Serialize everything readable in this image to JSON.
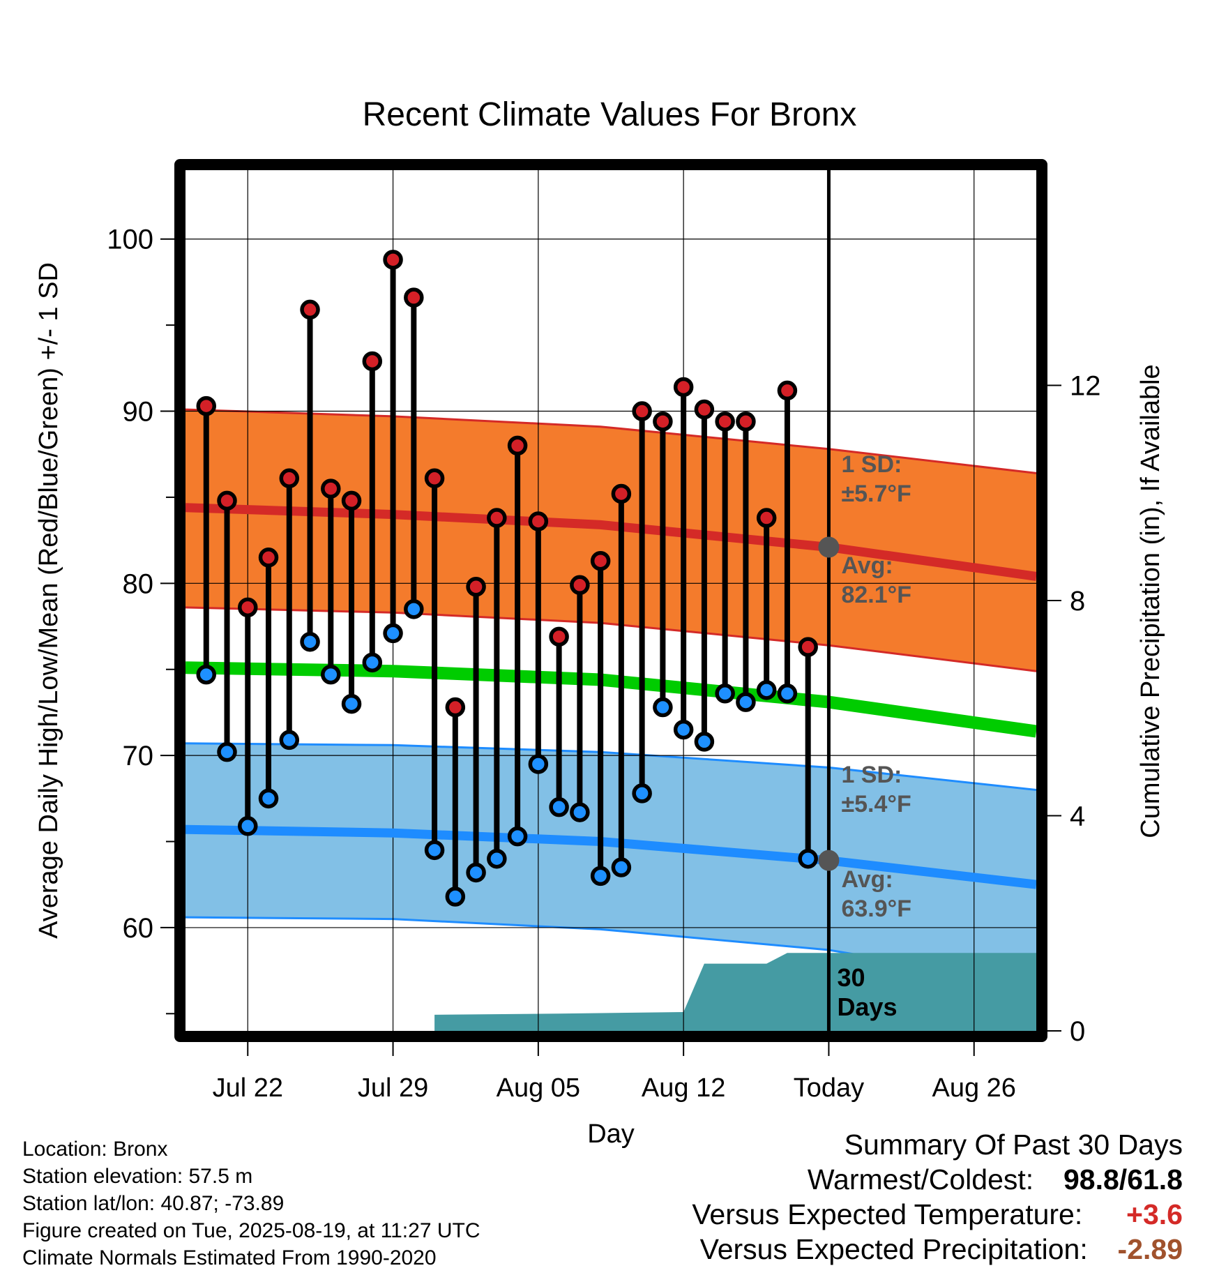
{
  "chart_data": {
    "type": "line",
    "title": "Recent Climate Values For Bronx",
    "xlabel": "Day",
    "ylabel": "Average Daily High/Low/Mean (Red/Blue/Green) +/- 1 SD",
    "y2label": "Cumulative Precipitation (in), If Available",
    "ylim": [
      54,
      104
    ],
    "y2lim": [
      0,
      16
    ],
    "xlim": [
      "2025-07-19",
      "2025-08-29"
    ],
    "y_ticks": [
      100,
      90,
      80,
      70,
      60
    ],
    "y2_ticks": [
      12,
      8,
      4,
      0
    ],
    "x_ticks": [
      {
        "date": "2025-07-22",
        "label": "Jul 22"
      },
      {
        "date": "2025-07-29",
        "label": "Jul 29"
      },
      {
        "date": "2025-08-05",
        "label": "Aug 05"
      },
      {
        "date": "2025-08-12",
        "label": "Aug 12"
      },
      {
        "date": "2025-08-19",
        "label": "Today"
      },
      {
        "date": "2025-08-26",
        "label": "Aug 26"
      }
    ],
    "grid": true,
    "today": "2025-08-19",
    "daily": {
      "dates": [
        "2025-07-20",
        "2025-07-21",
        "2025-07-22",
        "2025-07-23",
        "2025-07-24",
        "2025-07-25",
        "2025-07-26",
        "2025-07-27",
        "2025-07-28",
        "2025-07-29",
        "2025-07-30",
        "2025-07-31",
        "2025-08-01",
        "2025-08-02",
        "2025-08-03",
        "2025-08-04",
        "2025-08-05",
        "2025-08-06",
        "2025-08-07",
        "2025-08-08",
        "2025-08-09",
        "2025-08-10",
        "2025-08-11",
        "2025-08-12",
        "2025-08-13",
        "2025-08-14",
        "2025-08-15",
        "2025-08-16",
        "2025-08-17",
        "2025-08-18"
      ],
      "high": [
        90.3,
        84.8,
        78.6,
        81.5,
        86.1,
        95.9,
        85.5,
        84.8,
        92.9,
        98.8,
        96.6,
        86.1,
        72.8,
        79.8,
        83.8,
        88.0,
        83.6,
        76.9,
        79.9,
        81.3,
        85.2,
        90.0,
        89.4,
        91.4,
        90.1,
        89.4,
        89.4,
        83.8,
        91.2,
        76.3
      ],
      "low": [
        74.7,
        70.2,
        65.9,
        67.5,
        70.9,
        76.6,
        74.7,
        73.0,
        75.4,
        77.1,
        78.5,
        64.5,
        61.8,
        63.2,
        64.0,
        65.3,
        69.5,
        67.0,
        66.7,
        63.0,
        63.5,
        67.8,
        72.8,
        71.5,
        70.8,
        73.6,
        73.1,
        73.8,
        73.6,
        64.0
      ]
    },
    "normals": {
      "dates": [
        "2025-07-19",
        "2025-07-29",
        "2025-08-08",
        "2025-08-19",
        "2025-08-29"
      ],
      "high_avg": [
        84.4,
        84.0,
        83.4,
        82.1,
        80.4
      ],
      "high_sd_upper": [
        90.1,
        89.7,
        89.1,
        87.8,
        86.4
      ],
      "high_sd_lower": [
        78.6,
        78.3,
        77.7,
        76.4,
        74.9
      ],
      "mean_avg": [
        75.1,
        74.9,
        74.4,
        73.1,
        71.4
      ],
      "low_avg": [
        65.7,
        65.5,
        65.0,
        63.9,
        62.5
      ],
      "low_sd_upper": [
        70.7,
        70.6,
        70.2,
        69.3,
        68.0
      ],
      "low_sd_lower": [
        60.6,
        60.5,
        59.9,
        58.7,
        56.7
      ]
    },
    "precip_cumulative": {
      "dates": [
        "2025-07-20",
        "2025-07-31",
        "2025-07-31",
        "2025-08-06",
        "2025-08-12",
        "2025-08-13",
        "2025-08-16",
        "2025-08-17",
        "2025-08-19",
        "2025-08-29"
      ],
      "values": [
        0,
        0,
        0.3,
        0.32,
        0.35,
        1.25,
        1.25,
        1.45,
        1.45,
        1.45
      ]
    },
    "annotations": {
      "high_sd": {
        "line1": "1 SD:",
        "line2": "±5.7°F"
      },
      "high_avg": {
        "line1": "Avg:",
        "line2": "82.1°F"
      },
      "low_sd": {
        "line1": "1 SD:",
        "line2": "±5.4°F"
      },
      "low_avg": {
        "line1": "Avg:",
        "line2": "63.9°F"
      },
      "period": {
        "line1": "30",
        "line2": "Days"
      }
    },
    "colors": {
      "high_band": "#f47b2c",
      "high_line": "#d42a27",
      "mean_line": "#00cc00",
      "low_band": "#82c0e6",
      "low_line": "#1e8cff",
      "precip": "#459ba3",
      "high_marker": "#d42027",
      "low_marker": "#1e90ff",
      "annotation_text": "#555555"
    }
  },
  "info": {
    "location": "Location: Bronx",
    "elevation": "Station elevation: 57.5 m",
    "latlon": "Station lat/lon: 40.87; -73.89",
    "created": "Figure created on Tue, 2025-08-19, at 11:27 UTC",
    "normals": "Climate Normals Estimated From 1990-2020"
  },
  "summary": {
    "title": "Summary Of Past 30 Days",
    "warm_cold_label": "Warmest/Coldest:",
    "warmest": "98.8",
    "slash": "/",
    "coldest": "61.8",
    "temp_label": "Versus Expected Temperature:",
    "temp_value": "+3.6",
    "temp_color": "#d42a27",
    "precip_label": "Versus Expected Precipitation:",
    "precip_value": "-2.89",
    "precip_color": "#a0522d"
  }
}
